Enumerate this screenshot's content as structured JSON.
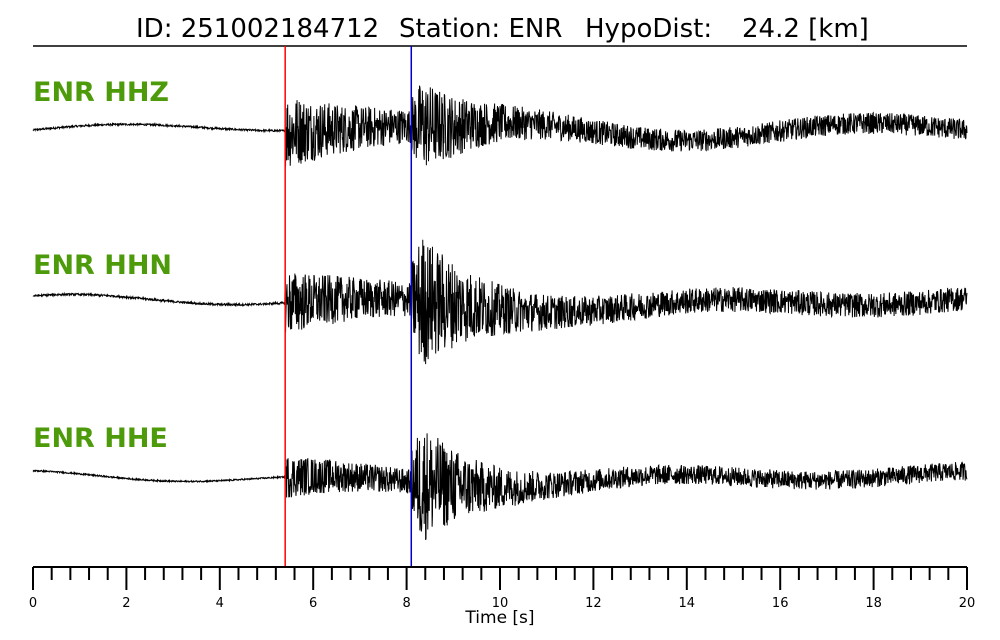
{
  "title": {
    "id_text": "ID: 251002184712",
    "station_text": "Station: ENR",
    "hypodist_text": "HypoDist:",
    "hypodist_value": "24.2 [km]"
  },
  "chart_data": {
    "type": "line",
    "xlabel": "Time [s]",
    "xlim": [
      0,
      20
    ],
    "x_major_ticks": [
      0,
      2,
      4,
      6,
      8,
      10,
      12,
      14,
      16,
      18,
      20
    ],
    "x_minor_tick_step": 0.4,
    "p_pick_s": 5.4,
    "s_pick_s": 8.1,
    "pick_colors": {
      "p": "#ff0000",
      "s": "#0000cc"
    },
    "label_color": "#4d9a0a",
    "traces": [
      {
        "name": "ENR HHZ",
        "channel": "HHZ",
        "amp_peak_p": 1.0,
        "amp_peak_s": 0.8,
        "noise_level": 0.05,
        "coda_level": 0.35,
        "long_period": 0.55
      },
      {
        "name": "ENR HHN",
        "channel": "HHN",
        "amp_peak_p": 0.55,
        "amp_peak_s": 1.0,
        "noise_level": 0.04,
        "coda_level": 0.3,
        "long_period": 0.1
      },
      {
        "name": "ENR HHE",
        "channel": "HHE",
        "amp_peak_p": 0.35,
        "amp_peak_s": 1.0,
        "noise_level": 0.03,
        "coda_level": 0.25,
        "long_period": 0.1
      }
    ]
  }
}
